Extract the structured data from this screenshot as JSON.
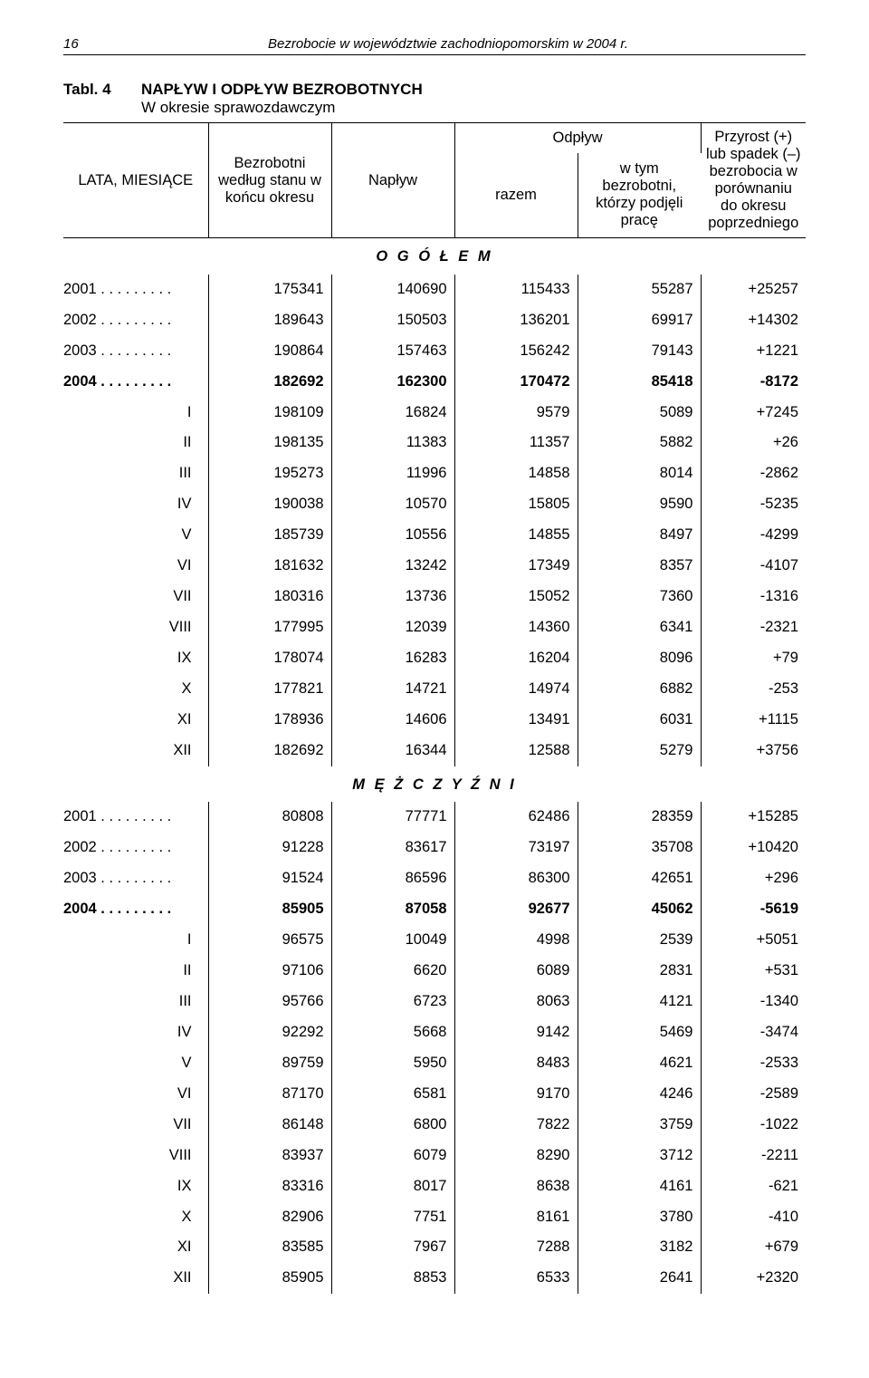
{
  "page_number": "16",
  "page_heading": "Bezrobocie w województwie zachodniopomorskim w 2004 r.",
  "table_label": "Tabl. 4",
  "table_title": "NAPŁYW I ODPŁYW BEZROBOTNYCH",
  "table_subtitle": "W okresie sprawozdawczym",
  "header": {
    "col_label": "LATA, MIESIĄCE",
    "col_a": "Bezrobotni według stanu w końcu okresu",
    "col_b": "Napływ",
    "outflow_span": "Odpływ",
    "col_c": "razem",
    "col_d": "w tym bezrobotni, którzy podjęli pracę",
    "col_e": "Przyrost (+) lub spadek (–) bezrobocia w porównaniu do okresu poprzedniego"
  },
  "sections": [
    {
      "title": "O G Ó Ł E M",
      "rows": [
        {
          "label": "2001 . . . . . . . . .",
          "a": "175341",
          "b": "140690",
          "c": "115433",
          "d": "55287",
          "e": "+25257",
          "roman": false,
          "bold": false
        },
        {
          "label": "2002 . . . . . . . . .",
          "a": "189643",
          "b": "150503",
          "c": "136201",
          "d": "69917",
          "e": "+14302",
          "roman": false,
          "bold": false
        },
        {
          "label": "2003 . . . . . . . . .",
          "a": "190864",
          "b": "157463",
          "c": "156242",
          "d": "79143",
          "e": "+1221",
          "roman": false,
          "bold": false
        },
        {
          "label": "2004 . . . . . . . . .",
          "a": "182692",
          "b": "162300",
          "c": "170472",
          "d": "85418",
          "e": "-8172",
          "roman": false,
          "bold": true
        },
        {
          "label": "I",
          "a": "198109",
          "b": "16824",
          "c": "9579",
          "d": "5089",
          "e": "+7245",
          "roman": true,
          "bold": false
        },
        {
          "label": "II",
          "a": "198135",
          "b": "11383",
          "c": "11357",
          "d": "5882",
          "e": "+26",
          "roman": true,
          "bold": false
        },
        {
          "label": "III",
          "a": "195273",
          "b": "11996",
          "c": "14858",
          "d": "8014",
          "e": "-2862",
          "roman": true,
          "bold": false
        },
        {
          "label": "IV",
          "a": "190038",
          "b": "10570",
          "c": "15805",
          "d": "9590",
          "e": "-5235",
          "roman": true,
          "bold": false
        },
        {
          "label": "V",
          "a": "185739",
          "b": "10556",
          "c": "14855",
          "d": "8497",
          "e": "-4299",
          "roman": true,
          "bold": false
        },
        {
          "label": "VI",
          "a": "181632",
          "b": "13242",
          "c": "17349",
          "d": "8357",
          "e": "-4107",
          "roman": true,
          "bold": false
        },
        {
          "label": "VII",
          "a": "180316",
          "b": "13736",
          "c": "15052",
          "d": "7360",
          "e": "-1316",
          "roman": true,
          "bold": false
        },
        {
          "label": "VIII",
          "a": "177995",
          "b": "12039",
          "c": "14360",
          "d": "6341",
          "e": "-2321",
          "roman": true,
          "bold": false
        },
        {
          "label": "IX",
          "a": "178074",
          "b": "16283",
          "c": "16204",
          "d": "8096",
          "e": "+79",
          "roman": true,
          "bold": false
        },
        {
          "label": "X",
          "a": "177821",
          "b": "14721",
          "c": "14974",
          "d": "6882",
          "e": "-253",
          "roman": true,
          "bold": false
        },
        {
          "label": "XI",
          "a": "178936",
          "b": "14606",
          "c": "13491",
          "d": "6031",
          "e": "+1115",
          "roman": true,
          "bold": false
        },
        {
          "label": "XII",
          "a": "182692",
          "b": "16344",
          "c": "12588",
          "d": "5279",
          "e": "+3756",
          "roman": true,
          "bold": false
        }
      ]
    },
    {
      "title": "M Ę Ż C Z Y Ź N I",
      "rows": [
        {
          "label": "2001 . . . . . . . . .",
          "a": "80808",
          "b": "77771",
          "c": "62486",
          "d": "28359",
          "e": "+15285",
          "roman": false,
          "bold": false
        },
        {
          "label": "2002 . . . . . . . . .",
          "a": "91228",
          "b": "83617",
          "c": "73197",
          "d": "35708",
          "e": "+10420",
          "roman": false,
          "bold": false
        },
        {
          "label": "2003 . . . . . . . . .",
          "a": "91524",
          "b": "86596",
          "c": "86300",
          "d": "42651",
          "e": "+296",
          "roman": false,
          "bold": false
        },
        {
          "label": "2004 . . . . . . . . .",
          "a": "85905",
          "b": "87058",
          "c": "92677",
          "d": "45062",
          "e": "-5619",
          "roman": false,
          "bold": true
        },
        {
          "label": "I",
          "a": "96575",
          "b": "10049",
          "c": "4998",
          "d": "2539",
          "e": "+5051",
          "roman": true,
          "bold": false
        },
        {
          "label": "II",
          "a": "97106",
          "b": "6620",
          "c": "6089",
          "d": "2831",
          "e": "+531",
          "roman": true,
          "bold": false
        },
        {
          "label": "III",
          "a": "95766",
          "b": "6723",
          "c": "8063",
          "d": "4121",
          "e": "-1340",
          "roman": true,
          "bold": false
        },
        {
          "label": "IV",
          "a": "92292",
          "b": "5668",
          "c": "9142",
          "d": "5469",
          "e": "-3474",
          "roman": true,
          "bold": false
        },
        {
          "label": "V",
          "a": "89759",
          "b": "5950",
          "c": "8483",
          "d": "4621",
          "e": "-2533",
          "roman": true,
          "bold": false
        },
        {
          "label": "VI",
          "a": "87170",
          "b": "6581",
          "c": "9170",
          "d": "4246",
          "e": "-2589",
          "roman": true,
          "bold": false
        },
        {
          "label": "VII",
          "a": "86148",
          "b": "6800",
          "c": "7822",
          "d": "3759",
          "e": "-1022",
          "roman": true,
          "bold": false
        },
        {
          "label": "VIII",
          "a": "83937",
          "b": "6079",
          "c": "8290",
          "d": "3712",
          "e": "-2211",
          "roman": true,
          "bold": false
        },
        {
          "label": "IX",
          "a": "83316",
          "b": "8017",
          "c": "8638",
          "d": "4161",
          "e": "-621",
          "roman": true,
          "bold": false
        },
        {
          "label": "X",
          "a": "82906",
          "b": "7751",
          "c": "8161",
          "d": "3780",
          "e": "-410",
          "roman": true,
          "bold": false
        },
        {
          "label": "XI",
          "a": "83585",
          "b": "7967",
          "c": "7288",
          "d": "3182",
          "e": "+679",
          "roman": true,
          "bold": false
        },
        {
          "label": "XII",
          "a": "85905",
          "b": "8853",
          "c": "6533",
          "d": "2641",
          "e": "+2320",
          "roman": true,
          "bold": false
        }
      ]
    }
  ]
}
